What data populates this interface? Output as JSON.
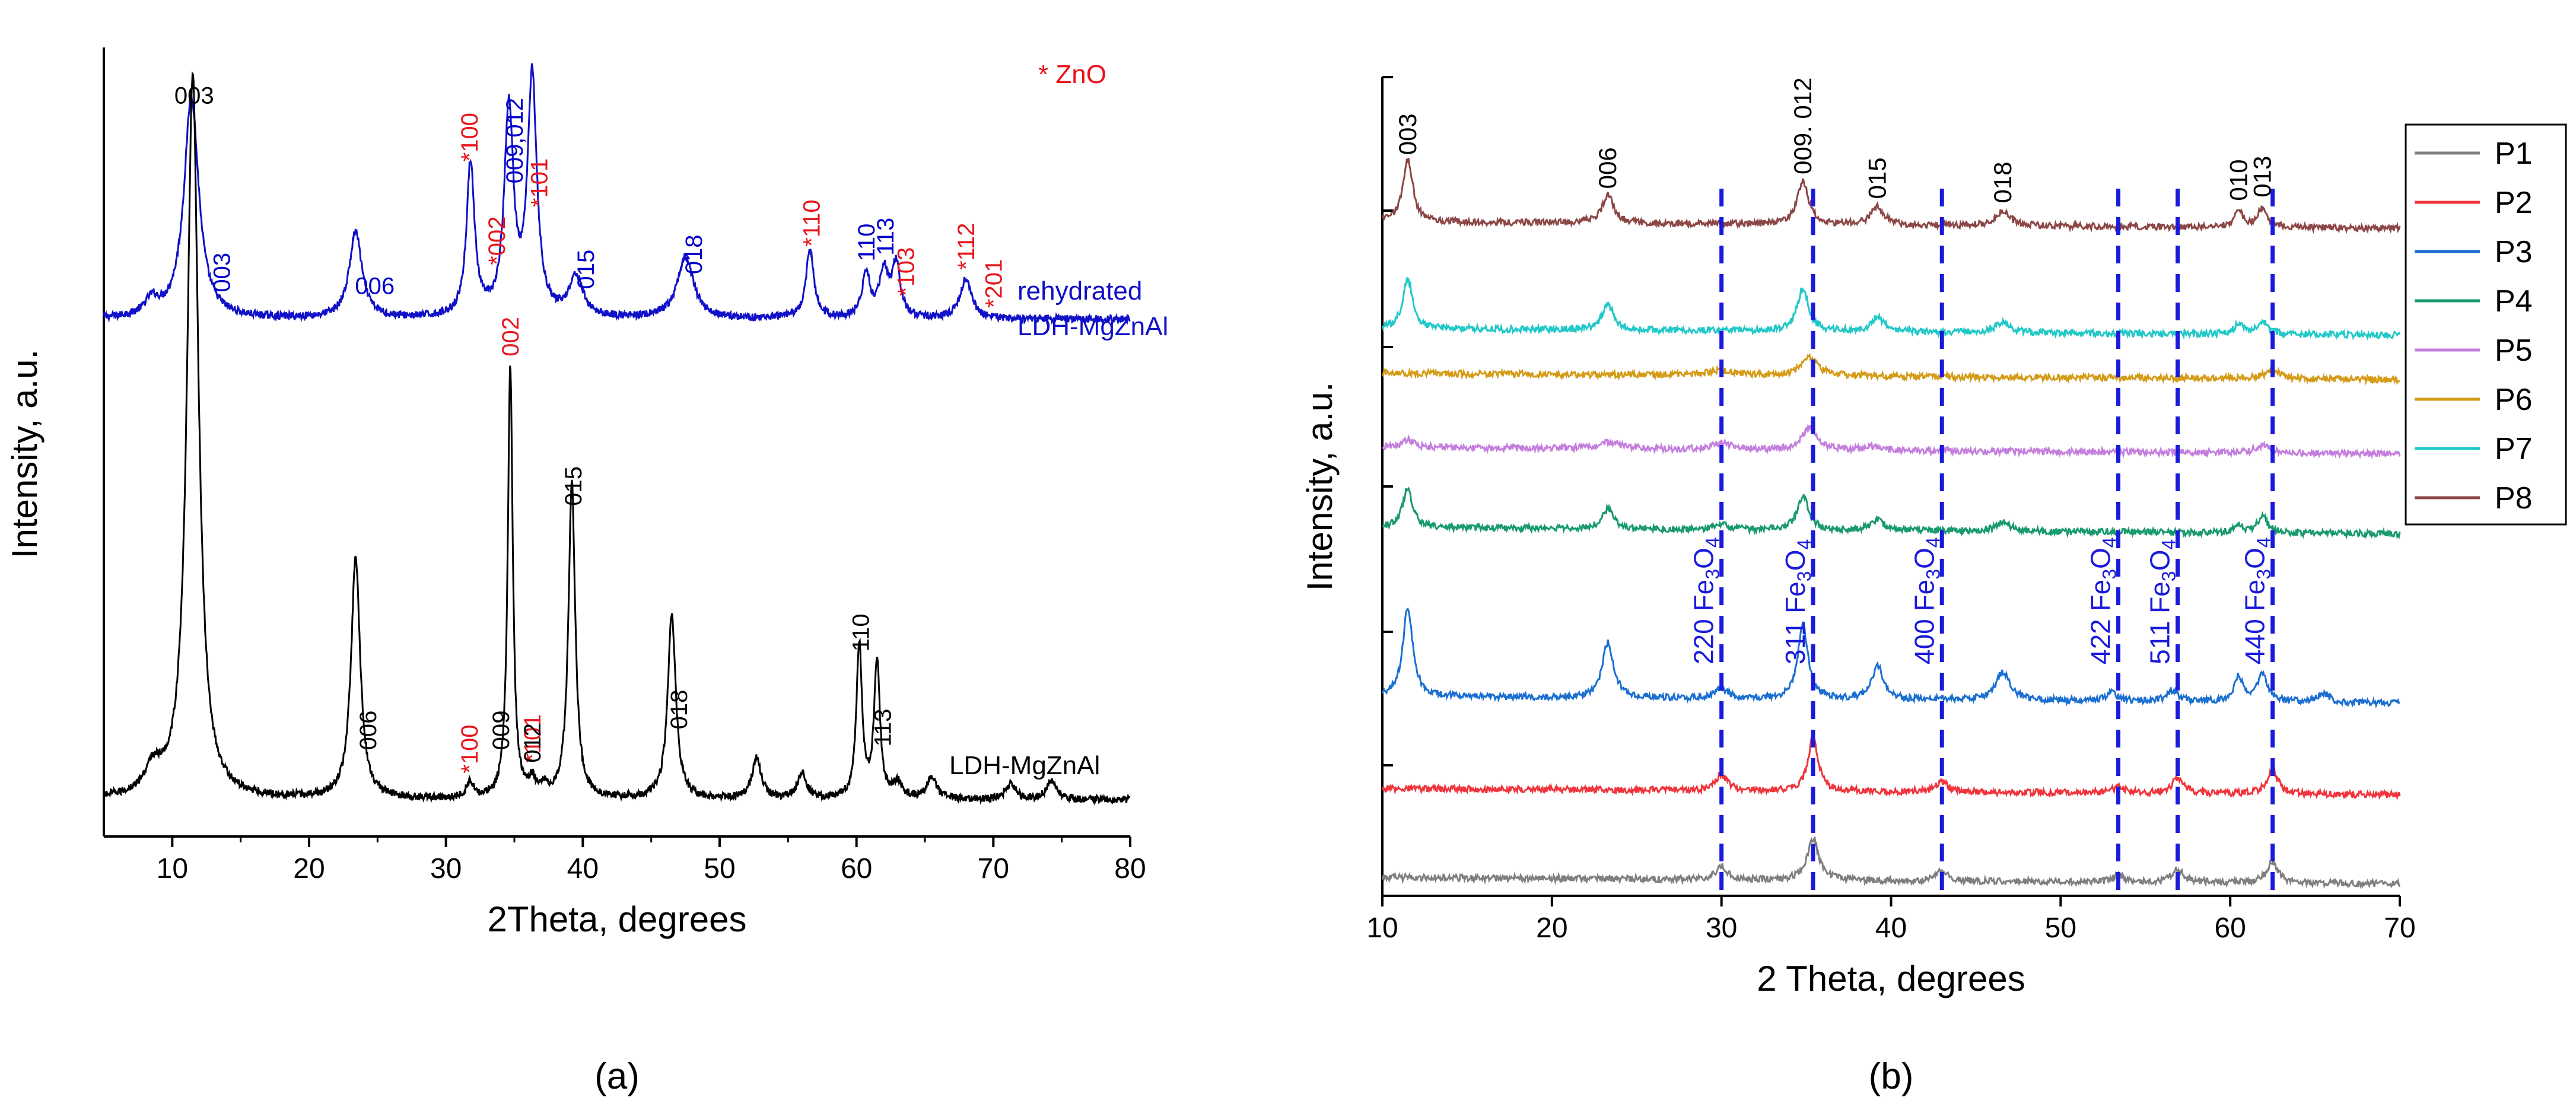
{
  "colors": {
    "black": "#000000",
    "blue_text": "#0000cc",
    "red_text": "#e8131a",
    "curve_blue": "#1010c8",
    "curve_black": "#000000",
    "dash_blue": "#1a1adb"
  },
  "chart_data": [
    {
      "panel_label": "(a)",
      "type": "line",
      "xlabel": "2Theta, degrees",
      "ylabel": "Intensity, a.u.",
      "xlim": [
        5,
        80
      ],
      "xticks": [
        10,
        20,
        30,
        40,
        50,
        60,
        70,
        80
      ],
      "xtick_labels": [
        "10",
        "20",
        "30",
        "40",
        "50",
        "60",
        "70",
        "80"
      ],
      "legend_note": "* ZnO",
      "series": [
        {
          "name": "rehydrated LDH-MgZnAl",
          "name_lines": [
            "rehydrated",
            "LDH-MgZnAl"
          ],
          "color": "#1010c8",
          "baseline": 0.1,
          "noise": 0.012,
          "peaks": [
            {
              "x": 8.5,
              "h": 0.05,
              "w": 0.6
            },
            {
              "x": 11.4,
              "h": 0.72,
              "w": 0.65
            },
            {
              "x": 23.4,
              "h": 0.28,
              "w": 0.55
            },
            {
              "x": 31.8,
              "h": 0.5,
              "w": 0.35
            },
            {
              "x": 34.6,
              "h": 0.67,
              "w": 0.4
            },
            {
              "x": 36.3,
              "h": 0.78,
              "w": 0.4
            },
            {
              "x": 39.5,
              "h": 0.13,
              "w": 0.6
            },
            {
              "x": 47.5,
              "h": 0.2,
              "w": 0.7
            },
            {
              "x": 56.6,
              "h": 0.22,
              "w": 0.35
            },
            {
              "x": 60.7,
              "h": 0.14,
              "w": 0.35
            },
            {
              "x": 62.0,
              "h": 0.15,
              "w": 0.4
            },
            {
              "x": 62.9,
              "h": 0.17,
              "w": 0.35
            },
            {
              "x": 68.0,
              "h": 0.13,
              "w": 0.5
            }
          ]
        },
        {
          "name": "LDH-MgZnAl",
          "name_lines": [
            "LDH-MgZnAl"
          ],
          "color": "#000000",
          "baseline": 0.1,
          "noise": 0.012,
          "peaks": [
            {
              "x": 8.6,
              "h": 0.08,
              "w": 0.7
            },
            {
              "x": 11.5,
              "h": 2.35,
              "w": 0.5
            },
            {
              "x": 23.4,
              "h": 0.78,
              "w": 0.4
            },
            {
              "x": 31.8,
              "h": 0.05,
              "w": 0.3
            },
            {
              "x": 34.7,
              "h": 1.4,
              "w": 0.22
            },
            {
              "x": 36.3,
              "h": 0.05,
              "w": 0.3
            },
            {
              "x": 37.2,
              "h": 0.03,
              "w": 0.3
            },
            {
              "x": 39.2,
              "h": 1.02,
              "w": 0.3
            },
            {
              "x": 46.5,
              "h": 0.6,
              "w": 0.35
            },
            {
              "x": 52.7,
              "h": 0.13,
              "w": 0.4
            },
            {
              "x": 56.0,
              "h": 0.08,
              "w": 0.4
            },
            {
              "x": 60.2,
              "h": 0.5,
              "w": 0.25
            },
            {
              "x": 61.5,
              "h": 0.45,
              "w": 0.25
            },
            {
              "x": 63.0,
              "h": 0.05,
              "w": 0.4
            },
            {
              "x": 65.5,
              "h": 0.07,
              "w": 0.4
            },
            {
              "x": 71.3,
              "h": 0.05,
              "w": 0.4
            },
            {
              "x": 74.2,
              "h": 0.06,
              "w": 0.4
            }
          ]
        }
      ],
      "annotations": [
        {
          "text": "003",
          "x": 11.6,
          "curve": 0,
          "color": "black",
          "rotate": false
        },
        {
          "text": "003",
          "x": 13.6,
          "curve": 0,
          "color": "blue",
          "rotate": true
        },
        {
          "text": "006",
          "x": 24.8,
          "curve": 0,
          "color": "blue",
          "rotate": false
        },
        {
          "text": "*100",
          "x": 31.7,
          "curve": 0,
          "color": "red",
          "rotate": true
        },
        {
          "text": "*002",
          "x": 33.7,
          "curve": 0,
          "color": "red",
          "rotate": true
        },
        {
          "text": "009,012",
          "x": 35.0,
          "curve": 0,
          "color": "blue",
          "rotate": true
        },
        {
          "text": "*101",
          "x": 36.8,
          "curve": 0,
          "color": "red",
          "rotate": true
        },
        {
          "text": "015",
          "x": 40.2,
          "curve": 0,
          "color": "blue",
          "rotate": true
        },
        {
          "text": "018",
          "x": 48.1,
          "curve": 0,
          "color": "blue",
          "rotate": true
        },
        {
          "text": "*110",
          "x": 56.7,
          "curve": 0,
          "color": "red",
          "rotate": true
        },
        {
          "text": "110",
          "x": 60.7,
          "curve": 0,
          "color": "blue",
          "rotate": true
        },
        {
          "text": "113",
          "x": 62.1,
          "curve": 0,
          "color": "blue",
          "rotate": true
        },
        {
          "text": "*103",
          "x": 63.6,
          "curve": 0,
          "color": "red",
          "rotate": true
        },
        {
          "text": "*112",
          "x": 68.0,
          "curve": 0,
          "color": "red",
          "rotate": true
        },
        {
          "text": "*201",
          "x": 70.0,
          "curve": 0,
          "color": "red",
          "rotate": true
        },
        {
          "text": "006",
          "x": 24.3,
          "curve": 1,
          "color": "black",
          "rotate": true
        },
        {
          "text": "*100",
          "x": 31.7,
          "curve": 1,
          "color": "red",
          "rotate": true
        },
        {
          "text": "002",
          "x": 34.7,
          "curve": 1,
          "color": "red",
          "rotate": true
        },
        {
          "text": "009",
          "x": 34.0,
          "curve": 1,
          "color": "black",
          "rotate": true
        },
        {
          "text": "*101",
          "x": 36.3,
          "curve": 1,
          "color": "red",
          "rotate": true
        },
        {
          "text": "012",
          "x": 36.3,
          "curve": 1,
          "color": "black",
          "rotate": true
        },
        {
          "text": "015",
          "x": 39.3,
          "curve": 1,
          "color": "black",
          "rotate": true
        },
        {
          "text": "018",
          "x": 47.0,
          "curve": 1,
          "color": "black",
          "rotate": true
        },
        {
          "text": "110",
          "x": 60.3,
          "curve": 1,
          "color": "black",
          "rotate": true
        },
        {
          "text": "113",
          "x": 61.9,
          "curve": 1,
          "color": "black",
          "rotate": true
        }
      ]
    },
    {
      "panel_label": "(b)",
      "type": "line",
      "xlabel": "2 Theta, degrees",
      "ylabel": "Intensity, a.u.",
      "xlim": [
        10,
        70
      ],
      "xticks": [
        10,
        20,
        30,
        40,
        50,
        60,
        70
      ],
      "xtick_labels": [
        "10",
        "20",
        "30",
        "40",
        "50",
        "60",
        "70"
      ],
      "legend": {
        "position": "right",
        "entries": [
          "P1",
          "P2",
          "P3",
          "P4",
          "P5",
          "P6",
          "P7",
          "P8"
        ]
      },
      "series": [
        {
          "name": "P1",
          "color": "#7f7f7f",
          "order": 0,
          "peaks": [
            {
              "x": 30.0,
              "h": 0.1,
              "w": 0.4
            },
            {
              "x": 35.4,
              "h": 0.32,
              "w": 0.4
            },
            {
              "x": 43.0,
              "h": 0.08,
              "w": 0.4
            },
            {
              "x": 53.4,
              "h": 0.05,
              "w": 0.4
            },
            {
              "x": 56.9,
              "h": 0.1,
              "w": 0.45
            },
            {
              "x": 62.5,
              "h": 0.16,
              "w": 0.4
            }
          ]
        },
        {
          "name": "P2",
          "color": "#f0343c",
          "order": 1,
          "peaks": [
            {
              "x": 30.0,
              "h": 0.12,
              "w": 0.4
            },
            {
              "x": 35.4,
              "h": 0.42,
              "w": 0.35
            },
            {
              "x": 43.0,
              "h": 0.08,
              "w": 0.4
            },
            {
              "x": 53.4,
              "h": 0.05,
              "w": 0.4
            },
            {
              "x": 56.9,
              "h": 0.12,
              "w": 0.4
            },
            {
              "x": 62.5,
              "h": 0.18,
              "w": 0.4
            }
          ]
        },
        {
          "name": "P3",
          "color": "#1a6fd1",
          "order": 2,
          "peaks": [
            {
              "x": 11.5,
              "h": 0.68,
              "w": 0.35
            },
            {
              "x": 23.3,
              "h": 0.42,
              "w": 0.4
            },
            {
              "x": 30.0,
              "h": 0.08,
              "w": 0.4
            },
            {
              "x": 34.8,
              "h": 0.58,
              "w": 0.35
            },
            {
              "x": 39.2,
              "h": 0.26,
              "w": 0.4
            },
            {
              "x": 46.6,
              "h": 0.22,
              "w": 0.5
            },
            {
              "x": 53.0,
              "h": 0.06,
              "w": 0.4
            },
            {
              "x": 56.6,
              "h": 0.08,
              "w": 0.4
            },
            {
              "x": 60.5,
              "h": 0.19,
              "w": 0.3
            },
            {
              "x": 61.9,
              "h": 0.22,
              "w": 0.35
            },
            {
              "x": 65.5,
              "h": 0.07,
              "w": 0.4
            }
          ]
        },
        {
          "name": "P4",
          "color": "#199a6c",
          "order": 3,
          "peaks": [
            {
              "x": 11.5,
              "h": 0.3,
              "w": 0.35
            },
            {
              "x": 23.3,
              "h": 0.15,
              "w": 0.4
            },
            {
              "x": 30.0,
              "h": 0.04,
              "w": 0.4
            },
            {
              "x": 34.8,
              "h": 0.26,
              "w": 0.4
            },
            {
              "x": 39.2,
              "h": 0.08,
              "w": 0.45
            },
            {
              "x": 46.6,
              "h": 0.07,
              "w": 0.5
            },
            {
              "x": 60.5,
              "h": 0.06,
              "w": 0.3
            },
            {
              "x": 61.9,
              "h": 0.13,
              "w": 0.35
            }
          ]
        },
        {
          "name": "P5",
          "color": "#c47fde",
          "order": 4,
          "peaks": [
            {
              "x": 11.5,
              "h": 0.06,
              "w": 0.4
            },
            {
              "x": 23.3,
              "h": 0.05,
              "w": 0.8
            },
            {
              "x": 30.0,
              "h": 0.05,
              "w": 0.6
            },
            {
              "x": 35.2,
              "h": 0.18,
              "w": 0.5
            },
            {
              "x": 39.0,
              "h": 0.03,
              "w": 0.6
            },
            {
              "x": 61.9,
              "h": 0.06,
              "w": 0.5
            }
          ]
        },
        {
          "name": "P6",
          "color": "#d49b16",
          "order": 5,
          "peaks": [
            {
              "x": 30.0,
              "h": 0.04,
              "w": 0.8
            },
            {
              "x": 35.2,
              "h": 0.14,
              "w": 0.6
            },
            {
              "x": 62.5,
              "h": 0.06,
              "w": 0.6
            }
          ]
        },
        {
          "name": "P7",
          "color": "#22c8c8",
          "order": 6,
          "peaks": [
            {
              "x": 11.5,
              "h": 0.38,
              "w": 0.35
            },
            {
              "x": 23.3,
              "h": 0.2,
              "w": 0.4
            },
            {
              "x": 34.8,
              "h": 0.33,
              "w": 0.4
            },
            {
              "x": 39.2,
              "h": 0.11,
              "w": 0.45
            },
            {
              "x": 46.6,
              "h": 0.08,
              "w": 0.5
            },
            {
              "x": 60.5,
              "h": 0.08,
              "w": 0.3
            },
            {
              "x": 61.9,
              "h": 0.1,
              "w": 0.35
            }
          ]
        },
        {
          "name": "P8",
          "color": "#8c4646",
          "order": 7,
          "peaks": [
            {
              "x": 11.5,
              "h": 0.48,
              "w": 0.35
            },
            {
              "x": 23.3,
              "h": 0.22,
              "w": 0.4
            },
            {
              "x": 34.8,
              "h": 0.33,
              "w": 0.4
            },
            {
              "x": 39.2,
              "h": 0.14,
              "w": 0.45
            },
            {
              "x": 46.6,
              "h": 0.11,
              "w": 0.5
            },
            {
              "x": 60.5,
              "h": 0.12,
              "w": 0.3
            },
            {
              "x": 61.9,
              "h": 0.15,
              "w": 0.35
            }
          ]
        }
      ],
      "reference_lines": [
        {
          "x": 30.0,
          "label": "220 Fe3O4",
          "hkl": "220 Fe",
          "sub3": "3",
          "o": "O",
          "sub4": "4"
        },
        {
          "x": 35.4,
          "label": "311 Fe3O4",
          "hkl": "311 Fe",
          "sub3": "3",
          "o": "O",
          "sub4": "4"
        },
        {
          "x": 43.0,
          "label": "400 Fe3O4",
          "hkl": "400 Fe",
          "sub3": "3",
          "o": "O",
          "sub4": "4"
        },
        {
          "x": 53.4,
          "label": "422 Fe3O4",
          "hkl": "422 Fe",
          "sub3": "3",
          "o": "O",
          "sub4": "4"
        },
        {
          "x": 56.9,
          "label": "511 Fe3O4",
          "hkl": "511 Fe",
          "sub3": "3",
          "o": "O",
          "sub4": "4"
        },
        {
          "x": 62.5,
          "label": "440 Fe3O4",
          "hkl": "440 Fe",
          "sub3": "3",
          "o": "O",
          "sub4": "4"
        }
      ],
      "annotations": [
        {
          "text": "003",
          "x": 11.5
        },
        {
          "text": "006",
          "x": 23.3
        },
        {
          "text": "009. 012",
          "x": 34.8
        },
        {
          "text": "015",
          "x": 39.2
        },
        {
          "text": "018",
          "x": 46.6
        },
        {
          "text": "010",
          "x": 60.5
        },
        {
          "text": "013",
          "x": 61.9
        }
      ]
    }
  ]
}
